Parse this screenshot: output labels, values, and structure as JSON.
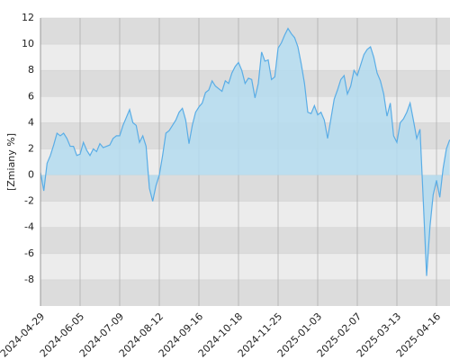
{
  "chart_data": {
    "type": "area",
    "y_label": "[Zmiany %]",
    "categories": [
      "2024-04-29",
      null,
      null,
      null,
      null,
      null,
      null,
      null,
      null,
      null,
      null,
      null,
      "2024-06-05",
      null,
      null,
      null,
      null,
      null,
      null,
      null,
      null,
      null,
      null,
      null,
      "2024-07-09",
      null,
      null,
      null,
      null,
      null,
      null,
      null,
      null,
      null,
      null,
      null,
      "2024-08-12",
      null,
      null,
      null,
      null,
      null,
      null,
      null,
      null,
      null,
      null,
      null,
      "2024-09-16",
      null,
      null,
      null,
      null,
      null,
      null,
      null,
      null,
      null,
      null,
      null,
      "2024-10-18",
      null,
      null,
      null,
      null,
      null,
      null,
      null,
      null,
      null,
      null,
      null,
      "2024-11-25",
      null,
      null,
      null,
      null,
      null,
      null,
      null,
      null,
      null,
      null,
      null,
      "2025-01-03",
      null,
      null,
      null,
      null,
      null,
      null,
      null,
      null,
      null,
      null,
      null,
      "2025-02-07",
      null,
      null,
      null,
      null,
      null,
      null,
      null,
      null,
      null,
      null,
      null,
      "2025-03-13",
      null,
      null,
      null,
      null,
      null,
      null,
      null,
      null,
      null,
      null,
      null,
      "2025-04-16",
      null,
      null,
      null,
      null
    ],
    "values": [
      0.2,
      -1.2,
      0.9,
      1.5,
      2.3,
      3.2,
      3.0,
      3.2,
      2.8,
      2.2,
      2.2,
      1.5,
      1.6,
      2.5,
      1.9,
      1.5,
      2.0,
      1.8,
      2.4,
      2.1,
      2.2,
      2.3,
      2.8,
      3.0,
      3.0,
      3.8,
      4.4,
      5.0,
      4.0,
      3.8,
      2.5,
      3.0,
      2.2,
      -1.0,
      -2.0,
      -0.8,
      0,
      1.5,
      3.2,
      3.4,
      3.8,
      4.2,
      4.8,
      5.1,
      4.2,
      2.4,
      3.8,
      4.8,
      5.2,
      5.5,
      6.3,
      6.5,
      7.2,
      6.8,
      6.6,
      6.4,
      7.2,
      7.0,
      7.8,
      8.3,
      8.6,
      8.0,
      7.0,
      7.4,
      7.3,
      5.9,
      7.0,
      9.4,
      8.7,
      8.8,
      7.3,
      7.5,
      9.7,
      10.1,
      10.7,
      11.2,
      10.8,
      10.5,
      9.8,
      8.5,
      7.0,
      4.8,
      4.7,
      5.3,
      4.6,
      4.8,
      4.2,
      2.8,
      4.3,
      5.8,
      6.5,
      7.3,
      7.6,
      6.2,
      6.8,
      8.0,
      7.6,
      8.4,
      9.2,
      9.6,
      9.8,
      9.0,
      7.8,
      7.2,
      6.2,
      4.5,
      5.5,
      3.0,
      2.5,
      4.0,
      4.3,
      4.8,
      5.5,
      4.2,
      2.8,
      3.5,
      -2.0,
      -7.7,
      -4.0,
      -1.5,
      -0.4,
      -1.7,
      0.5,
      2.0,
      2.7
    ],
    "line_color": "#5aade6",
    "fill_color": "#b4dcf0",
    "ylim": [
      -10,
      12
    ],
    "yticks": [
      -8,
      -6,
      -4,
      -2,
      0,
      2,
      4,
      6,
      8,
      10,
      12
    ],
    "grid": true,
    "band_colors": [
      "#dcdcdc",
      "#ececec"
    ]
  }
}
